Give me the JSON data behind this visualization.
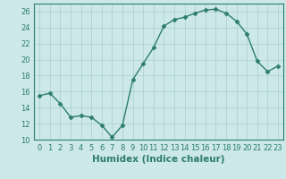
{
  "x": [
    0,
    1,
    2,
    3,
    4,
    5,
    6,
    7,
    8,
    9,
    10,
    11,
    12,
    13,
    14,
    15,
    16,
    17,
    18,
    19,
    20,
    21,
    22,
    23
  ],
  "y": [
    15.5,
    15.8,
    14.5,
    12.8,
    13.0,
    12.8,
    11.8,
    10.3,
    11.8,
    17.5,
    19.5,
    21.5,
    24.2,
    25.0,
    25.3,
    25.8,
    26.2,
    26.3,
    25.8,
    24.8,
    23.2,
    19.8,
    18.5,
    19.2
  ],
  "line_color": "#2d7d6e",
  "marker": "D",
  "marker_size": 2.5,
  "background_color": "#cce8e8",
  "grid_color": "#aacfcf",
  "xlabel": "Humidex (Indice chaleur)",
  "xlim": [
    -0.5,
    23.5
  ],
  "ylim": [
    10,
    27
  ],
  "yticks": [
    10,
    12,
    14,
    16,
    18,
    20,
    22,
    24,
    26
  ],
  "xticks": [
    0,
    1,
    2,
    3,
    4,
    5,
    6,
    7,
    8,
    9,
    10,
    11,
    12,
    13,
    14,
    15,
    16,
    17,
    18,
    19,
    20,
    21,
    22,
    23
  ],
  "tick_label_fontsize": 6,
  "xlabel_fontsize": 7.5,
  "line_width": 1.0
}
